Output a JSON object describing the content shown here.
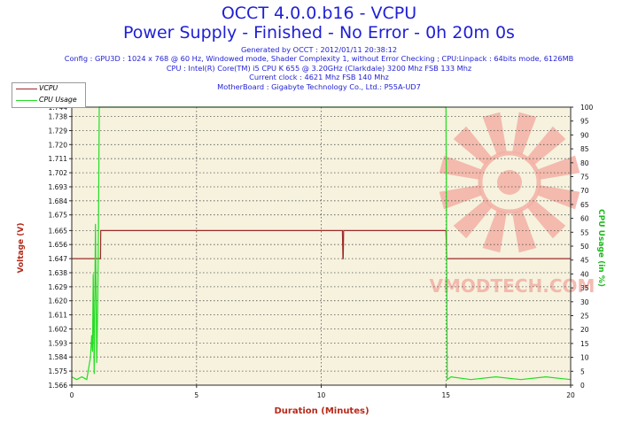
{
  "header": {
    "title": "OCCT 4.0.0.b16 - VCPU",
    "subtitle": "Power Supply - Finished - No Error - 0h 20m 0s",
    "info_lines": [
      "Generated by OCCT : 2012/01/11 20:38:12",
      "Config : GPU3D : 1024 x 768 @ 60 Hz, Windowed mode, Shader Complexity 1, without Error Checking ; CPU:Linpack : 64bits mode, 6126MB",
      "CPU : Intel(R) Core(TM) i5 CPU K 655 @ 3.20GHz (Clarkdale) 3200 Mhz FSB 133 Mhz",
      "Current clock : 4621 Mhz FSB 140 Mhz",
      "MotherBoard : Gigabyte Technology Co., Ltd.: P55A-UD7"
    ]
  },
  "legend": {
    "items": [
      {
        "label": "VCPU",
        "color": "#9e2a2a"
      },
      {
        "label": "CPU Usage",
        "color": "#22dd22"
      }
    ]
  },
  "watermark": "VMODTECH.COM",
  "colors": {
    "plot_background": "#f6f2de",
    "grid": "#555555",
    "vcpu": "#9e2a2a",
    "cpu_usage": "#22dd22",
    "left_axis_title": "#b52a1a",
    "right_axis_title": "#1dba1d",
    "title": "#1f1fd6"
  },
  "chart_data": {
    "type": "line",
    "title": "OCCT 4.0.0.b16 - VCPU",
    "xlabel": "Duration (Minutes)",
    "ylabel": "Voltage (V)",
    "y2label": "CPU Usage (in %)",
    "xlim": [
      0,
      20
    ],
    "ylim": [
      1.566,
      1.744
    ],
    "y2lim": [
      0,
      100
    ],
    "x_ticks": [
      0,
      5,
      10,
      15,
      20
    ],
    "y_ticks": [
      "1.566",
      "1.575",
      "1.584",
      "1.593",
      "1.602",
      "1.611",
      "1.620",
      "1.629",
      "1.638",
      "1.647",
      "1.656",
      "1.665",
      "1.675",
      "1.684",
      "1.693",
      "1.702",
      "1.711",
      "1.720",
      "1.729",
      "1.738",
      "1.744"
    ],
    "y2_ticks": [
      0,
      5,
      10,
      15,
      20,
      25,
      30,
      35,
      40,
      45,
      50,
      55,
      60,
      65,
      70,
      75,
      80,
      85,
      90,
      95,
      100
    ],
    "grid": true,
    "legend_position": "top-left",
    "series": [
      {
        "name": "VCPU",
        "axis": "left",
        "x": [
          0,
          1.15,
          1.16,
          10.85,
          10.86,
          10.87,
          10.88,
          10.89,
          10.9,
          10.91,
          15.0,
          15.02,
          15.03,
          15.05,
          20
        ],
        "y": [
          1.647,
          1.647,
          1.665,
          1.665,
          1.656,
          1.647,
          1.647,
          1.656,
          1.665,
          1.665,
          1.665,
          1.656,
          1.647,
          1.647,
          1.647
        ]
      },
      {
        "name": "CPU Usage",
        "axis": "right",
        "x": [
          0,
          0.2,
          0.4,
          0.6,
          0.75,
          0.8,
          0.83,
          0.86,
          0.9,
          0.95,
          1.0,
          1.04,
          1.07,
          1.1,
          1.13,
          1.16,
          1.2,
          2,
          5,
          10,
          14.9,
          14.97,
          15.0,
          15.05,
          15.2,
          16,
          17,
          18,
          19,
          20
        ],
        "y": [
          3,
          2,
          3,
          2,
          10,
          18,
          12,
          40,
          4,
          58,
          8,
          30,
          55,
          100,
          100,
          100,
          100,
          100,
          100,
          100,
          100,
          100,
          100,
          2,
          3,
          2,
          3,
          2,
          3,
          2
        ]
      }
    ]
  }
}
